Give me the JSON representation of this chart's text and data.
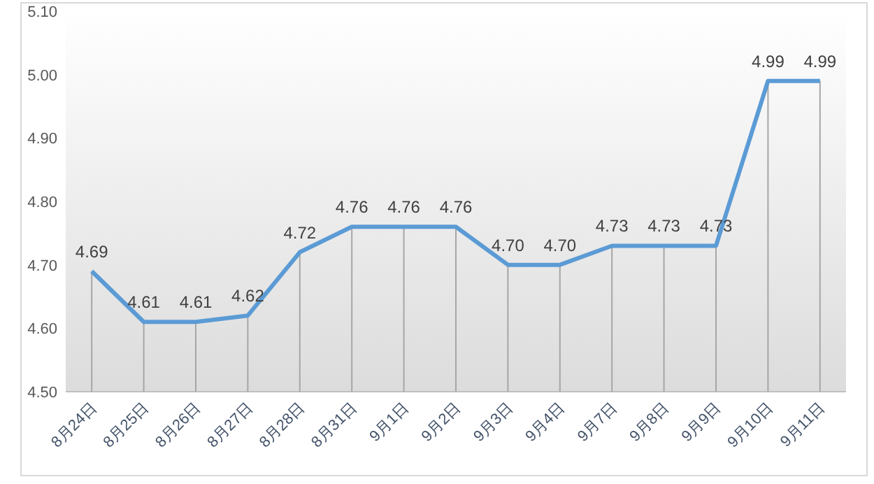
{
  "chart_data": {
    "type": "line",
    "categories": [
      "8月24日",
      "8月25日",
      "8月26日",
      "8月27日",
      "8月28日",
      "8月31日",
      "9月1日",
      "9月2日",
      "9月3日",
      "9月4日",
      "9月7日",
      "9月8日",
      "9月9日",
      "9月10日",
      "9月11日"
    ],
    "series": [
      {
        "color": "#5b9bd5",
        "values": [
          4.69,
          4.61,
          4.61,
          4.62,
          4.72,
          4.76,
          4.76,
          4.76,
          4.7,
          4.7,
          4.73,
          4.73,
          4.73,
          4.99,
          4.99
        ],
        "value_labels": [
          "4.69",
          "4.61",
          "4.61",
          "4.62",
          "4.72",
          "4.76",
          "4.76",
          "4.76",
          "4.70",
          "4.70",
          "4.73",
          "4.73",
          "4.73",
          "4.99",
          "4.99"
        ]
      }
    ],
    "ylim": [
      4.5,
      5.1
    ],
    "yticks": [
      {
        "value": 4.5,
        "label": "4.50"
      },
      {
        "value": 4.6,
        "label": "4.60"
      },
      {
        "value": 4.7,
        "label": "4.70"
      },
      {
        "value": 4.8,
        "label": "4.80"
      },
      {
        "value": 4.9,
        "label": "4.90"
      },
      {
        "value": 5.0,
        "label": "5.00"
      },
      {
        "value": 5.1,
        "label": "5.10"
      }
    ],
    "grid": "x",
    "marker": "none",
    "line_style": "solid"
  }
}
